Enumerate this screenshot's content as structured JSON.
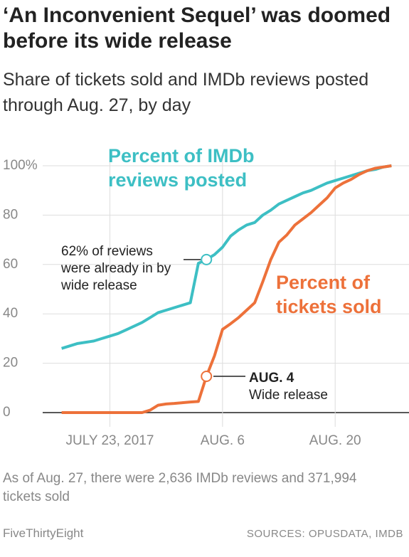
{
  "chart_data": {
    "type": "line",
    "title": "‘An Inconvenient Sequel’ was doomed before its wide release",
    "subtitle": "Share of tickets sold and IMDb reviews posted through Aug. 27, by day",
    "x": [
      "2017-07-17",
      "2017-07-18",
      "2017-07-19",
      "2017-07-20",
      "2017-07-21",
      "2017-07-22",
      "2017-07-23",
      "2017-07-24",
      "2017-07-25",
      "2017-07-26",
      "2017-07-27",
      "2017-07-28",
      "2017-07-29",
      "2017-07-30",
      "2017-07-31",
      "2017-08-01",
      "2017-08-02",
      "2017-08-03",
      "2017-08-04",
      "2017-08-05",
      "2017-08-06",
      "2017-08-07",
      "2017-08-08",
      "2017-08-09",
      "2017-08-10",
      "2017-08-11",
      "2017-08-12",
      "2017-08-13",
      "2017-08-14",
      "2017-08-15",
      "2017-08-16",
      "2017-08-17",
      "2017-08-18",
      "2017-08-19",
      "2017-08-20",
      "2017-08-21",
      "2017-08-22",
      "2017-08-23",
      "2017-08-24",
      "2017-08-25",
      "2017-08-26",
      "2017-08-27"
    ],
    "series": [
      {
        "name": "Percent of IMDb reviews posted",
        "color": "#3dbfc4",
        "values": [
          26,
          27,
          28,
          28.5,
          29,
          30,
          31,
          32,
          33.5,
          35,
          36.5,
          38.5,
          40.5,
          41.5,
          42.5,
          43.5,
          44.5,
          60.5,
          62,
          64,
          67,
          71.5,
          74,
          76,
          77,
          80,
          82,
          84.5,
          86,
          87.5,
          89,
          90,
          91.5,
          93,
          94,
          95,
          96,
          97,
          98,
          98.5,
          99.5,
          100
        ]
      },
      {
        "name": "Percent of tickets sold",
        "color": "#ed713a",
        "values": [
          0,
          0,
          0,
          0,
          0,
          0,
          0,
          0,
          0,
          0,
          0,
          1,
          3,
          3.5,
          3.7,
          4,
          4.3,
          4.5,
          14.7,
          23,
          33.7,
          36,
          38.5,
          41.5,
          44.5,
          53,
          62,
          69,
          72,
          76,
          78.5,
          81,
          84,
          87,
          91,
          93,
          94.5,
          96.5,
          98,
          99,
          99.5,
          100
        ]
      }
    ],
    "xlim": [
      "2017-07-15",
      "2017-08-29"
    ],
    "xticks": [
      {
        "value": "2017-07-23",
        "label": "JULY 23, 2017"
      },
      {
        "value": "2017-08-06",
        "label": "AUG. 6"
      },
      {
        "value": "2017-08-20",
        "label": "AUG. 20"
      }
    ],
    "ylim": [
      0,
      100
    ],
    "yticks": [
      0,
      20,
      40,
      60,
      80,
      {
        "value": 100,
        "label": "100%"
      }
    ],
    "grid": true,
    "annotations": [
      {
        "text": "62% of reviews were already in by wide release"
      },
      {
        "heading": "AUG. 4",
        "text": "Wide release"
      }
    ],
    "note": "As of Aug. 27, there were 2,636 IMDb reviews and 371,994 tickets sold",
    "brand": "FiveThirtyEight",
    "source": "SOURCES: OPUSDATA, IMDB"
  }
}
